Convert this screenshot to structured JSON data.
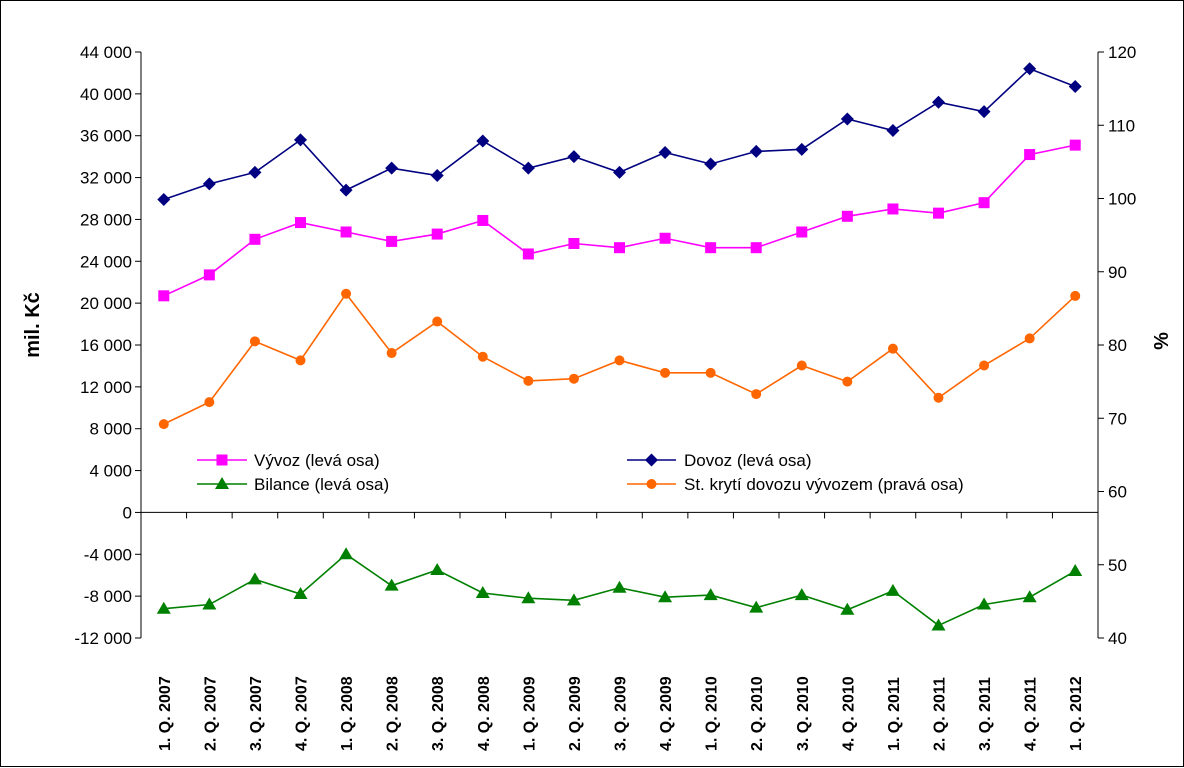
{
  "chart_data": {
    "type": "line",
    "categories": [
      "1. Q. 2007",
      "2. Q. 2007",
      "3. Q. 2007",
      "4. Q. 2007",
      "1. Q. 2008",
      "2. Q. 2008",
      "3. Q. 2008",
      "4. Q. 2008",
      "1. Q. 2009",
      "2. Q. 2009",
      "3. Q. 2009",
      "4. Q. 2009",
      "1. Q. 2010",
      "2. Q. 2010",
      "3. Q. 2010",
      "4. Q. 2010",
      "1. Q. 2011",
      "2. Q. 2011",
      "3. Q. 2011",
      "4. Q. 2011",
      "1. Q. 2012"
    ],
    "ylabel": "mil. Kč",
    "y2label": "%",
    "ylim": [
      -12000,
      44000
    ],
    "y2lim": [
      40,
      120
    ],
    "yticks": [
      44000,
      40000,
      36000,
      32000,
      28000,
      24000,
      20000,
      16000,
      12000,
      8000,
      4000,
      0,
      -4000,
      -8000,
      -12000
    ],
    "ytick_labels": [
      "44 000",
      "40 000",
      "36 000",
      "32 000",
      "28 000",
      "24 000",
      "20 000",
      "16 000",
      "12 000",
      "8 000",
      "4 000",
      "0",
      "-4 000",
      "-8 000",
      "-12 000"
    ],
    "y2ticks": [
      120,
      110,
      100,
      90,
      80,
      70,
      60,
      50,
      40
    ],
    "y2tick_labels": [
      "120",
      "110",
      "100",
      "90",
      "80",
      "70",
      "60",
      "50",
      "40"
    ],
    "series": [
      {
        "name": "Vývoz (levá osa)",
        "axis": "left",
        "color": "#ff00ff",
        "marker": "square",
        "values": [
          20700,
          22700,
          26100,
          27700,
          26800,
          25900,
          26600,
          27900,
          24700,
          25700,
          25300,
          26200,
          25300,
          25300,
          26800,
          28300,
          29000,
          28600,
          29600,
          34200,
          35100
        ]
      },
      {
        "name": "Dovoz (levá osa)",
        "axis": "left",
        "color": "#000080",
        "marker": "diamond",
        "values": [
          29900,
          31400,
          32500,
          35600,
          30800,
          32900,
          32200,
          35500,
          32900,
          34000,
          32500,
          34400,
          33300,
          34500,
          34700,
          37600,
          36500,
          39200,
          38300,
          42400,
          40700
        ]
      },
      {
        "name": "Bilance (levá osa)",
        "axis": "left",
        "color": "#008000",
        "marker": "triangle",
        "values": [
          -9200,
          -8800,
          -6400,
          -7800,
          -4000,
          -7000,
          -5500,
          -7700,
          -8200,
          -8400,
          -7200,
          -8100,
          -7900,
          -9100,
          -7900,
          -9300,
          -7500,
          -10800,
          -8800,
          -8100,
          -5600
        ]
      },
      {
        "name": "St. krytí dovozu vývozem (pravá osa)",
        "axis": "right",
        "color": "#ff6600",
        "marker": "circle",
        "values": [
          69.2,
          72.2,
          80.5,
          77.9,
          87.0,
          78.9,
          83.2,
          78.4,
          75.1,
          75.4,
          77.9,
          76.2,
          76.2,
          73.3,
          77.2,
          75.0,
          79.5,
          72.8,
          77.2,
          80.9,
          86.7
        ]
      }
    ],
    "legend_position": "inside-middle"
  }
}
